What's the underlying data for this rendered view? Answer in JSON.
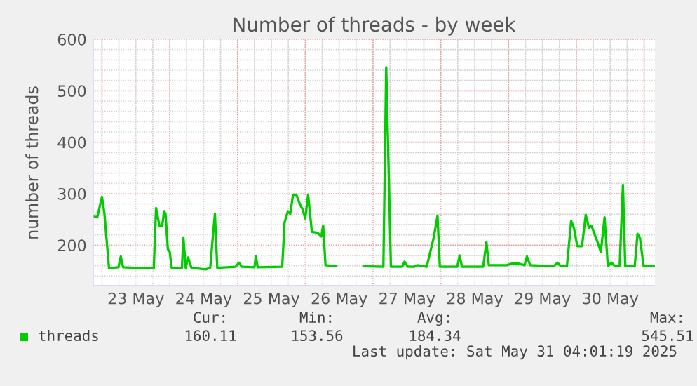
{
  "chart_data": {
    "type": "line",
    "title": "Number of threads - by week",
    "ylabel": "number of threads",
    "x": [
      "2025-05-22T20:40",
      "2025-05-22T22:20",
      "2025-05-23T00:00",
      "2025-05-23T00:50",
      "2025-05-23T02:30",
      "2025-05-23T05:50",
      "2025-05-23T06:40",
      "2025-05-23T07:30",
      "2025-05-23T15:00",
      "2025-05-23T17:30",
      "2025-05-23T18:20",
      "2025-05-23T19:10",
      "2025-05-23T20:20",
      "2025-05-23T21:20",
      "2025-05-23T22:00",
      "2025-05-23T22:30",
      "2025-05-23T23:20",
      "2025-05-24T00:00",
      "2025-05-24T00:40",
      "2025-05-24T04:20",
      "2025-05-24T04:50",
      "2025-05-24T05:40",
      "2025-05-24T06:30",
      "2025-05-24T07:40",
      "2025-05-24T12:40",
      "2025-05-24T14:20",
      "2025-05-24T15:10",
      "2025-05-24T16:00",
      "2025-05-24T16:50",
      "2025-05-24T23:20",
      "2025-05-25T00:30",
      "2025-05-25T01:30",
      "2025-05-25T06:00",
      "2025-05-25T06:30",
      "2025-05-25T07:10",
      "2025-05-25T15:50",
      "2025-05-25T16:40",
      "2025-05-25T17:50",
      "2025-05-25T18:40",
      "2025-05-25T19:40",
      "2025-05-25T20:50",
      "2025-05-25T22:00",
      "2025-05-25T23:00",
      "2025-05-26T00:00",
      "2025-05-26T01:00",
      "2025-05-26T02:20",
      "2025-05-26T04:20",
      "2025-05-26T05:40",
      "2025-05-26T06:20",
      "2025-05-26T07:10",
      "2025-05-26T11:00",
      "2025-05-26T15:00",
      "2025-05-26T20:40",
      "2025-05-27T03:40",
      "2025-05-27T04:40",
      "2025-05-27T06:20",
      "2025-05-27T10:20",
      "2025-05-27T11:10",
      "2025-05-27T12:20",
      "2025-05-27T14:30",
      "2025-05-27T15:40",
      "2025-05-27T19:00",
      "2025-05-27T21:30",
      "2025-05-27T22:50",
      "2025-05-27T23:40",
      "2025-05-28T05:50",
      "2025-05-28T06:40",
      "2025-05-28T07:30",
      "2025-05-28T15:00",
      "2025-05-28T16:10",
      "2025-05-28T17:00",
      "2025-05-28T23:20",
      "2025-05-29T01:00",
      "2025-05-29T03:30",
      "2025-05-29T05:40",
      "2025-05-29T06:30",
      "2025-05-29T07:40",
      "2025-05-29T16:00",
      "2025-05-29T17:20",
      "2025-05-29T18:30",
      "2025-05-29T20:40",
      "2025-05-29T22:10",
      "2025-05-29T23:10",
      "2025-05-30T00:20",
      "2025-05-30T02:00",
      "2025-05-30T03:20",
      "2025-05-30T04:30",
      "2025-05-30T05:20",
      "2025-05-30T07:30",
      "2025-05-30T08:40",
      "2025-05-30T10:00",
      "2025-05-30T11:10",
      "2025-05-30T12:30",
      "2025-05-30T13:40",
      "2025-05-30T15:20",
      "2025-05-30T16:30",
      "2025-05-30T17:20",
      "2025-05-30T20:40",
      "2025-05-30T21:40",
      "2025-05-30T22:30",
      "2025-05-30T23:50",
      "2025-05-31T03:50"
    ],
    "series": [
      {
        "name": "threads",
        "color": "#00cc00",
        "values": [
          256,
          254,
          294,
          263,
          155,
          157,
          178,
          157,
          155,
          156,
          155,
          272,
          238,
          238,
          266,
          261,
          192,
          187,
          156,
          156,
          215,
          156,
          176,
          156,
          153,
          156,
          210,
          261,
          156,
          158,
          166,
          158,
          157,
          178,
          157,
          158,
          244,
          266,
          261,
          298,
          298,
          281,
          270,
          252,
          298,
          226,
          224,
          217,
          238,
          161,
          159,
          null,
          159,
          158,
          545.51,
          158,
          158,
          168,
          158,
          158,
          161,
          158,
          215,
          257,
          158,
          158,
          180,
          158,
          158,
          206,
          161,
          161,
          164,
          164,
          161,
          178,
          161,
          159,
          166,
          159,
          159,
          247,
          233,
          198,
          198,
          259,
          233,
          238,
          206,
          187,
          254,
          159,
          166,
          159,
          159,
          317,
          159,
          159,
          222,
          215,
          159,
          160.11
        ]
      }
    ],
    "xlim": [
      "2025-05-22T20:40",
      "2025-05-31T03:50"
    ],
    "xticks": [
      {
        "value": "2025-05-23T12:00",
        "label": "23 May"
      },
      {
        "value": "2025-05-24T12:00",
        "label": "24 May"
      },
      {
        "value": "2025-05-25T12:00",
        "label": "25 May"
      },
      {
        "value": "2025-05-26T12:00",
        "label": "26 May"
      },
      {
        "value": "2025-05-27T12:00",
        "label": "27 May"
      },
      {
        "value": "2025-05-28T12:00",
        "label": "28 May"
      },
      {
        "value": "2025-05-29T12:00",
        "label": "29 May"
      },
      {
        "value": "2025-05-30T12:00",
        "label": "30 May"
      }
    ],
    "ylim": [
      120,
      600
    ],
    "yticks": [
      200,
      300,
      400,
      500,
      600
    ],
    "grid": true,
    "legend": "bottom left",
    "marker": "none",
    "line_style": "solid",
    "annotations": [
      "Cur:",
      "160.11",
      "Min:",
      "153.56",
      "Avg:",
      "184.34",
      "Max:",
      "545.51",
      "Last update: Sat May 31 04:01:19 2025"
    ]
  }
}
